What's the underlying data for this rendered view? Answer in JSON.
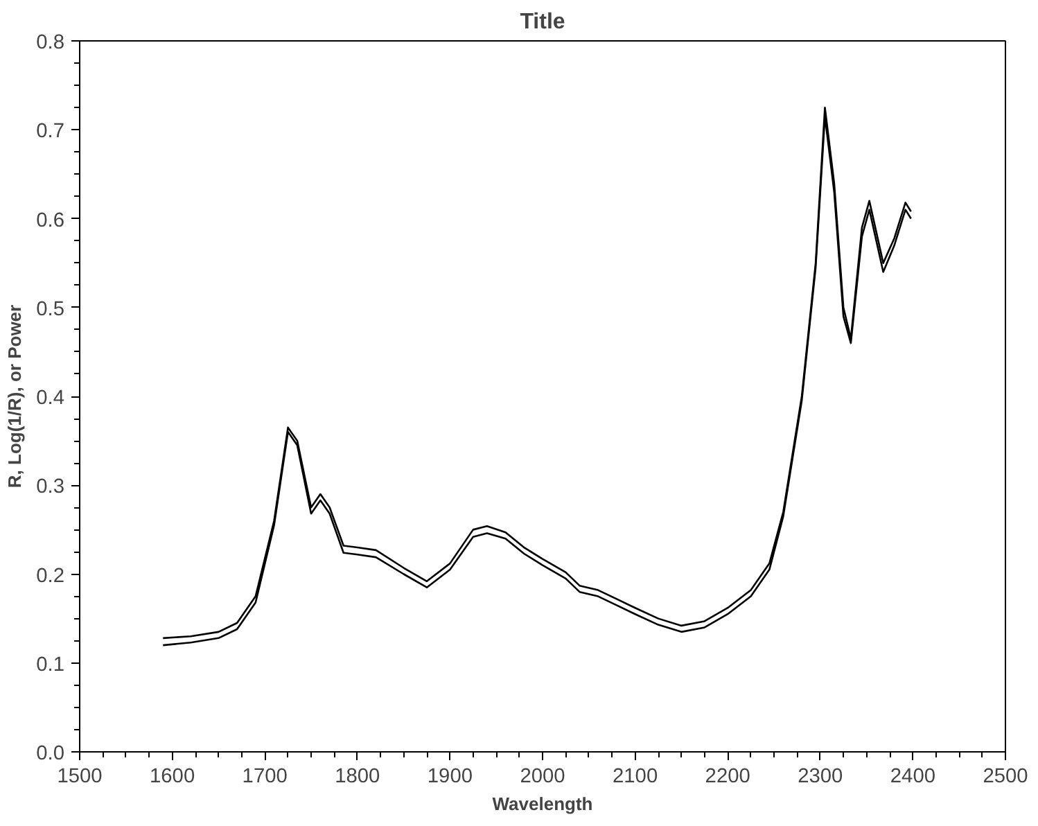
{
  "chart_data": {
    "type": "line",
    "title": "Title",
    "xlabel": "Wavelength",
    "ylabel": "R, Log(1/R), or Power",
    "xlim": [
      1500,
      2500
    ],
    "ylim": [
      0,
      0.8
    ],
    "xticks": [
      1500,
      1600,
      1700,
      1800,
      1900,
      2000,
      2100,
      2200,
      2300,
      2400,
      2500
    ],
    "yticks": [
      {
        "value": 0,
        "label": "0.0"
      },
      0.1,
      0.2,
      0.3,
      0.4,
      0.5,
      0.6,
      0.7,
      0.8
    ],
    "grid": false,
    "marker": "none",
    "line_style": "solid",
    "series": [
      {
        "color": "#000000",
        "x": [
          1590,
          1620,
          1650,
          1670,
          1690,
          1710,
          1725,
          1735,
          1750,
          1760,
          1770,
          1785,
          1800,
          1820,
          1850,
          1875,
          1900,
          1925,
          1940,
          1960,
          1980,
          2000,
          2025,
          2040,
          2060,
          2080,
          2100,
          2125,
          2150,
          2175,
          2200,
          2225,
          2245,
          2260,
          2280,
          2295,
          2305,
          2315,
          2325,
          2333,
          2345,
          2353,
          2368,
          2380,
          2392,
          2398
        ],
        "values": [
          0.128,
          0.13,
          0.135,
          0.145,
          0.175,
          0.26,
          0.365,
          0.35,
          0.275,
          0.29,
          0.275,
          0.232,
          0.23,
          0.227,
          0.207,
          0.192,
          0.212,
          0.25,
          0.254,
          0.247,
          0.23,
          0.217,
          0.202,
          0.187,
          0.182,
          0.172,
          0.162,
          0.15,
          0.142,
          0.147,
          0.162,
          0.182,
          0.212,
          0.27,
          0.4,
          0.55,
          0.725,
          0.64,
          0.5,
          0.465,
          0.59,
          0.62,
          0.55,
          0.578,
          0.618,
          0.608
        ]
      },
      {
        "color": "#000000",
        "x": [
          1590,
          1620,
          1650,
          1670,
          1690,
          1710,
          1725,
          1735,
          1750,
          1760,
          1770,
          1785,
          1800,
          1820,
          1850,
          1875,
          1900,
          1925,
          1940,
          1960,
          1980,
          2000,
          2025,
          2040,
          2060,
          2080,
          2100,
          2125,
          2150,
          2175,
          2200,
          2225,
          2245,
          2260,
          2280,
          2295,
          2305,
          2315,
          2325,
          2333,
          2345,
          2353,
          2368,
          2380,
          2392,
          2398
        ],
        "values": [
          0.12,
          0.123,
          0.128,
          0.138,
          0.168,
          0.255,
          0.36,
          0.345,
          0.268,
          0.283,
          0.268,
          0.224,
          0.222,
          0.219,
          0.2,
          0.185,
          0.205,
          0.242,
          0.246,
          0.24,
          0.223,
          0.21,
          0.195,
          0.18,
          0.175,
          0.165,
          0.155,
          0.143,
          0.135,
          0.14,
          0.155,
          0.175,
          0.205,
          0.265,
          0.395,
          0.545,
          0.715,
          0.63,
          0.49,
          0.46,
          0.58,
          0.61,
          0.54,
          0.57,
          0.61,
          0.6
        ]
      }
    ]
  }
}
